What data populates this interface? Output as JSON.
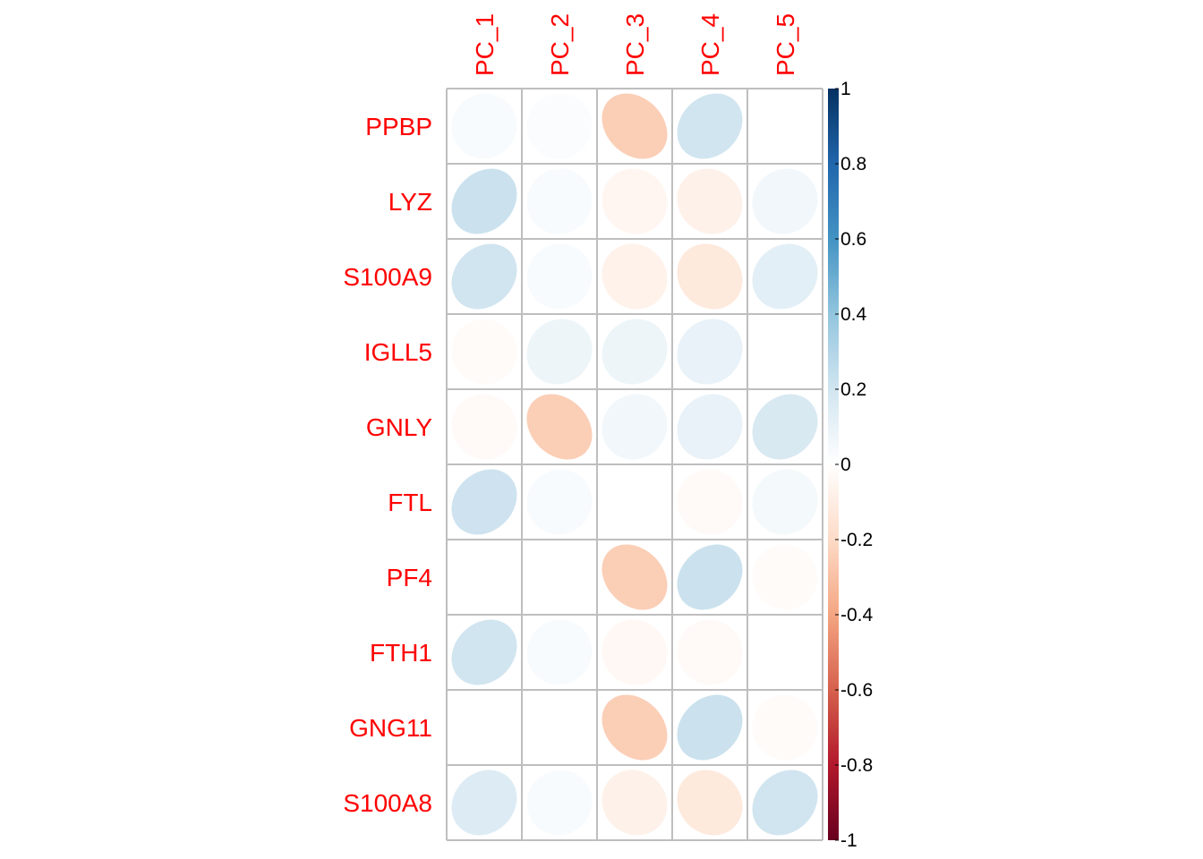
{
  "chart_data": {
    "type": "heatmap",
    "style": "ellipse correlation plot",
    "rows": [
      "PPBP",
      "LYZ",
      "S100A9",
      "IGLL5",
      "GNLY",
      "FTL",
      "PF4",
      "FTH1",
      "GNG11",
      "S100A8"
    ],
    "columns": [
      "PC_1",
      "PC_2",
      "PC_3",
      "PC_4",
      "PC_5"
    ],
    "values": [
      [
        0.03,
        0.02,
        -0.25,
        0.2,
        0.0
      ],
      [
        0.22,
        0.03,
        -0.05,
        -0.08,
        0.06
      ],
      [
        0.2,
        0.03,
        -0.07,
        -0.12,
        0.12
      ],
      [
        -0.02,
        0.08,
        0.08,
        0.1,
        0.0
      ],
      [
        -0.03,
        -0.25,
        0.06,
        0.1,
        0.17
      ],
      [
        0.21,
        0.03,
        0.0,
        -0.03,
        0.05
      ],
      [
        0.0,
        0.0,
        -0.25,
        0.22,
        -0.02
      ],
      [
        0.2,
        0.03,
        -0.04,
        -0.03,
        0.0
      ],
      [
        0.0,
        0.0,
        -0.25,
        0.22,
        -0.02
      ],
      [
        0.15,
        0.03,
        -0.08,
        -0.12,
        0.2
      ]
    ],
    "colorbar": {
      "range": [
        -1,
        1
      ],
      "ticks": [
        "1",
        "0.8",
        "0.6",
        "0.4",
        "0.2",
        "0",
        "-0.2",
        "-0.4",
        "-0.6",
        "-0.8",
        "-1"
      ],
      "colors": [
        "#053061",
        "#2166AC",
        "#4393C3",
        "#92C5DE",
        "#D1E5F0",
        "#FFFFFF",
        "#FDDBC7",
        "#F4A582",
        "#D6604D",
        "#B2182B",
        "#67001F"
      ]
    },
    "label_color": "#FF0000",
    "grid_color": "#BEBEBE"
  }
}
